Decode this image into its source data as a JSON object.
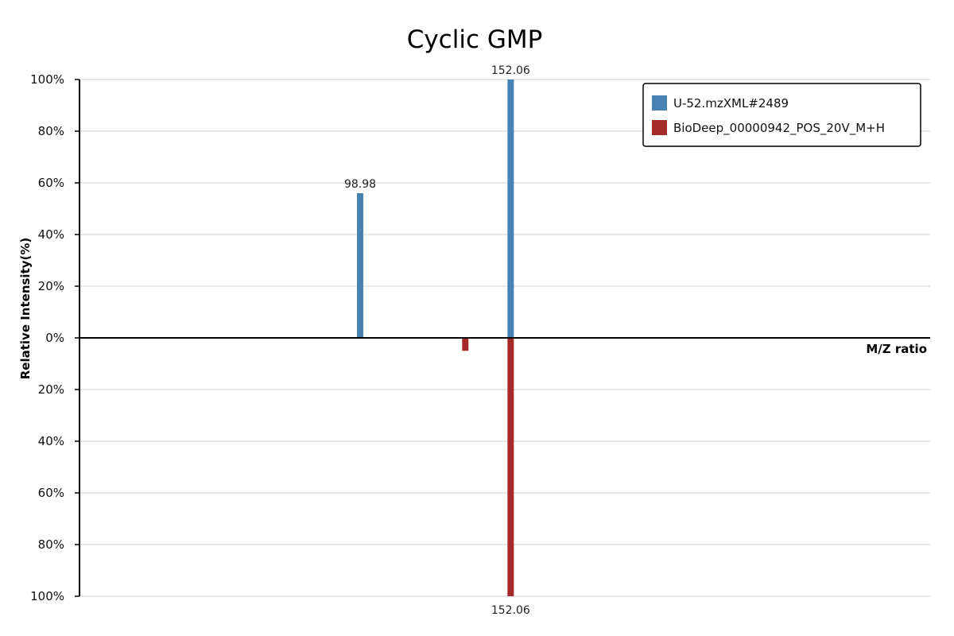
{
  "chart_data": {
    "type": "bar",
    "title": "Cyclic GMP",
    "xlabel": "M/Z ratio",
    "ylabel": "Relative Intensity(%)",
    "y_tick_labels": [
      "100%",
      "80%",
      "60%",
      "40%",
      "20%",
      "0%",
      "20%",
      "40%",
      "60%",
      "80%",
      "100%"
    ],
    "y_tick_values": [
      100,
      80,
      60,
      40,
      20,
      0,
      -20,
      -40,
      -60,
      -80,
      -100
    ],
    "ylim": [
      -100,
      100
    ],
    "xlim": [
      0,
      300
    ],
    "grid": true,
    "legend_position": "top-right",
    "series": [
      {
        "name": "U-52.mzXML#2489",
        "color": "#4682b4",
        "direction": "up",
        "peaks": [
          {
            "mz": 98.98,
            "intensity": 56,
            "label": "98.98"
          },
          {
            "mz": 152.06,
            "intensity": 100,
            "label": "152.06"
          }
        ]
      },
      {
        "name": "BioDeep_00000942_POS_20V_M+H",
        "color": "#a52a2a",
        "direction": "down",
        "peaks": [
          {
            "mz": 136.06,
            "intensity": 5,
            "label": ""
          },
          {
            "mz": 152.06,
            "intensity": 100,
            "label": "152.06"
          }
        ]
      }
    ]
  }
}
